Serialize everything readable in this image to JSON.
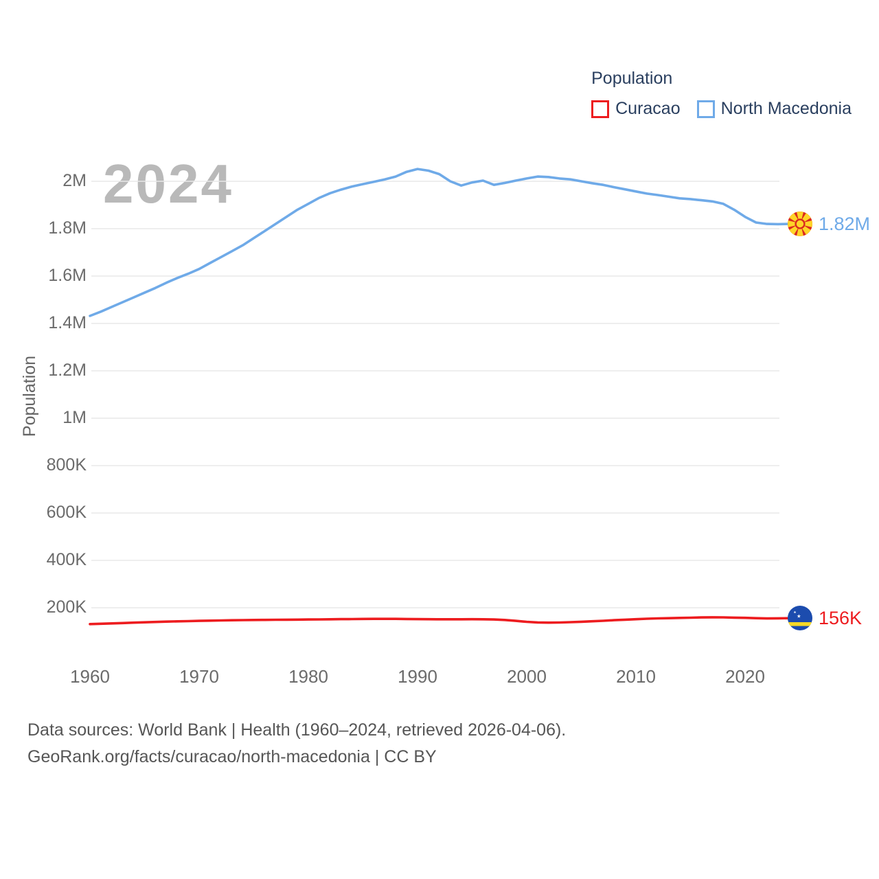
{
  "watermark": "2024",
  "legend": {
    "title": "Population",
    "items": [
      {
        "label": "Curacao",
        "color": "#ed1c1f"
      },
      {
        "label": "North Macedonia",
        "color": "#6faae8"
      }
    ]
  },
  "footer": {
    "line1": "Data sources: World Bank | Health (1960–2024, retrieved 2026-04-06).",
    "line2": "GeoRank.org/facts/curacao/north-macedonia | CC BY"
  },
  "chart_data": {
    "type": "line",
    "title": "Population",
    "xlabel": "",
    "ylabel": "Population",
    "grid": "horizontal",
    "legend_position": "top-right",
    "x_range": [
      1960,
      2024
    ],
    "ylim": [
      0,
      2100000
    ],
    "x_ticks": [
      1960,
      1970,
      1980,
      1990,
      2000,
      2010,
      2020
    ],
    "y_ticks": [
      {
        "value": 200000,
        "label": "200K"
      },
      {
        "value": 400000,
        "label": "400K"
      },
      {
        "value": 600000,
        "label": "600K"
      },
      {
        "value": 800000,
        "label": "800K"
      },
      {
        "value": 1000000,
        "label": "1M"
      },
      {
        "value": 1200000,
        "label": "1.2M"
      },
      {
        "value": 1400000,
        "label": "1.4M"
      },
      {
        "value": 1600000,
        "label": "1.6M"
      },
      {
        "value": 1800000,
        "label": "1.8M"
      },
      {
        "value": 2000000,
        "label": "2M"
      }
    ],
    "series": [
      {
        "name": "Curacao",
        "color": "#ed1c1f",
        "end_label": "156K",
        "flag": "curacao",
        "values": [
          131000,
          132500,
          134000,
          135500,
          137000,
          138500,
          140000,
          141500,
          142500,
          143500,
          144500,
          145500,
          146500,
          147200,
          147800,
          148400,
          148800,
          149200,
          149600,
          150000,
          150300,
          150800,
          151300,
          151800,
          152300,
          152800,
          152900,
          153000,
          153000,
          152500,
          152000,
          151500,
          151200,
          151200,
          151300,
          151500,
          151300,
          150500,
          148500,
          144500,
          140500,
          138000,
          137000,
          137800,
          139000,
          141000,
          143000,
          145000,
          147500,
          149500,
          151500,
          153500,
          155000,
          156000,
          157000,
          158000,
          159000,
          159800,
          159300,
          158300,
          157300,
          155800,
          154800,
          155300,
          156000
        ]
      },
      {
        "name": "North Macedonia",
        "color": "#6faae8",
        "end_label": "1.82M",
        "flag": "north-macedonia",
        "values": [
          1432000,
          1450000,
          1470000,
          1490000,
          1510000,
          1530000,
          1550000,
          1572000,
          1592000,
          1610000,
          1630000,
          1655000,
          1680000,
          1705000,
          1730000,
          1760000,
          1790000,
          1820000,
          1850000,
          1880000,
          1905000,
          1930000,
          1950000,
          1965000,
          1978000,
          1988000,
          1998000,
          2008000,
          2020000,
          2040000,
          2052000,
          2045000,
          2030000,
          2000000,
          1982000,
          1995000,
          2003000,
          1985000,
          1993000,
          2003000,
          2012000,
          2020000,
          2018000,
          2012000,
          2008000,
          2000000,
          1992000,
          1985000,
          1975000,
          1966000,
          1957000,
          1948000,
          1942000,
          1935000,
          1928000,
          1925000,
          1920000,
          1915000,
          1905000,
          1880000,
          1850000,
          1826000,
          1820000,
          1819000,
          1820000
        ]
      }
    ]
  }
}
